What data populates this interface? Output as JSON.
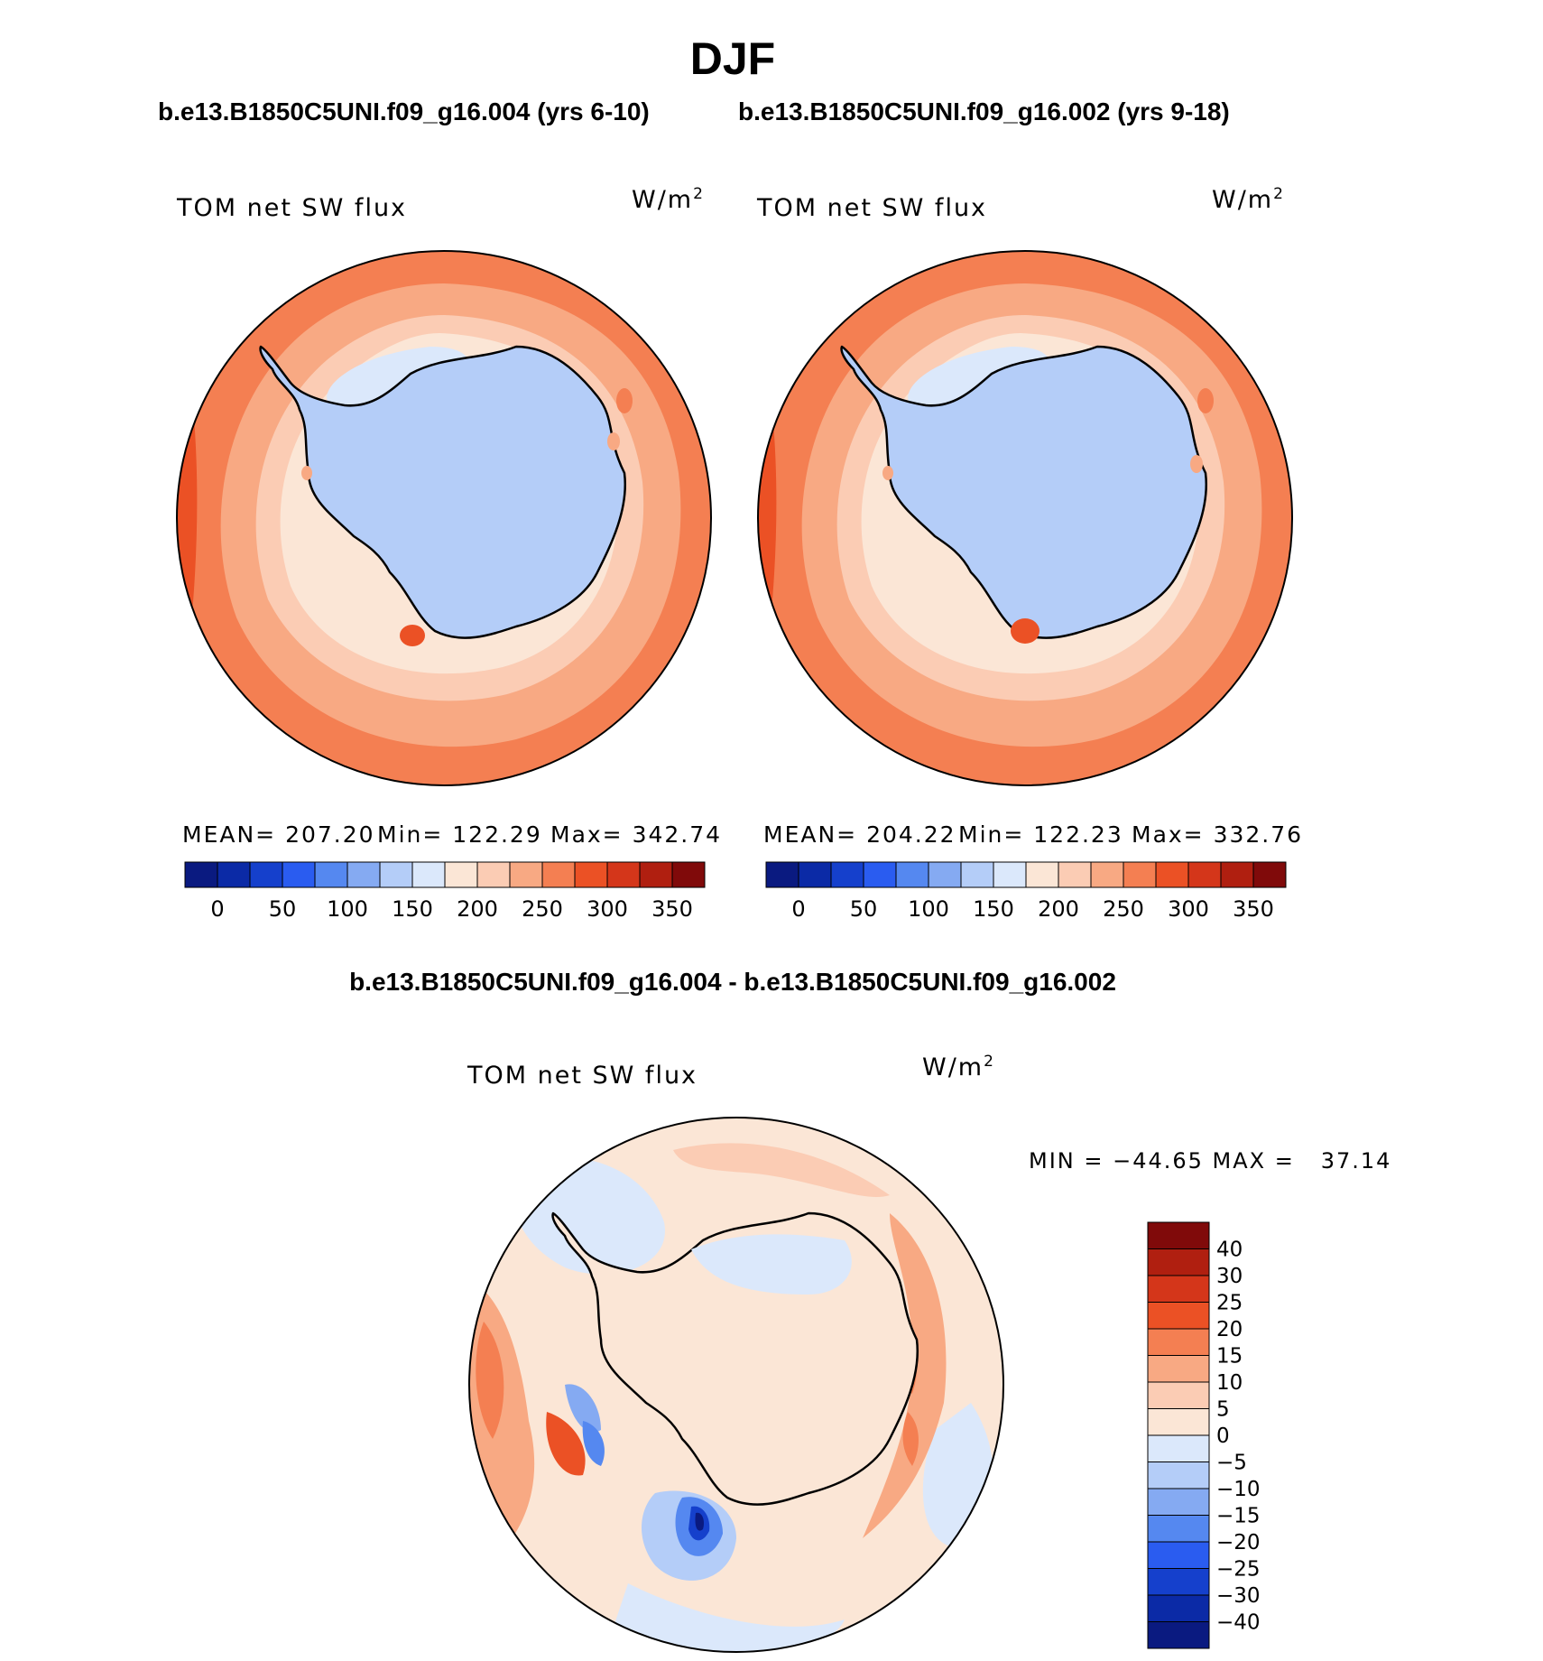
{
  "title": "DJF",
  "subtitle_left": "b.e13.B1850C5UNI.f09_g16.004 (yrs 6-10)",
  "subtitle_right": "b.e13.B1850C5UNI.f09_g16.002 (yrs 9-18)",
  "diff_title": "b.e13.B1850C5UNI.f09_g16.004 - b.e13.B1850C5UNI.f09_g16.002",
  "panels": {
    "left": {
      "variable": "TOM net SW flux",
      "units": "W/m",
      "units_exp": "2",
      "mean": "MEAN= 207.20",
      "min": "Min= 122.29",
      "max": "Max= 342.74"
    },
    "right": {
      "variable": "TOM net SW flux",
      "units": "W/m",
      "units_exp": "2",
      "mean": "MEAN= 204.22",
      "min": "Min= 122.23",
      "max": "Max= 332.76"
    },
    "diff": {
      "variable": "TOM net SW flux",
      "units": "W/m",
      "units_exp": "2",
      "minmax": "MIN = −44.65 MAX =   37.14"
    }
  },
  "abs_colorbar": {
    "colors": [
      "#0a1a80",
      "#0b2aa6",
      "#1540cc",
      "#2a5cf0",
      "#5588f0",
      "#85aaf2",
      "#b4cdf8",
      "#dbe8fb",
      "#fbe6d6",
      "#fbccb4",
      "#f8a983",
      "#f47f52",
      "#eb5125",
      "#d4361a",
      "#b01f10",
      "#800a0a"
    ],
    "labels": [
      "0",
      "50",
      "100",
      "150",
      "200",
      "250",
      "300",
      "350"
    ]
  },
  "diff_colorbar": {
    "colors": [
      "#0a1a80",
      "#0b2aa6",
      "#1540cc",
      "#2a5cf0",
      "#5588f0",
      "#85aaf2",
      "#b4cdf8",
      "#dbe8fb",
      "#fbe6d6",
      "#fbccb4",
      "#f8a983",
      "#f47f52",
      "#eb5125",
      "#d4361a",
      "#b01f10",
      "#800a0a"
    ],
    "labels": [
      "40",
      "30",
      "25",
      "20",
      "15",
      "10",
      "5",
      "0",
      "−5",
      "−10",
      "−15",
      "−20",
      "−25",
      "−30",
      "−40"
    ]
  }
}
